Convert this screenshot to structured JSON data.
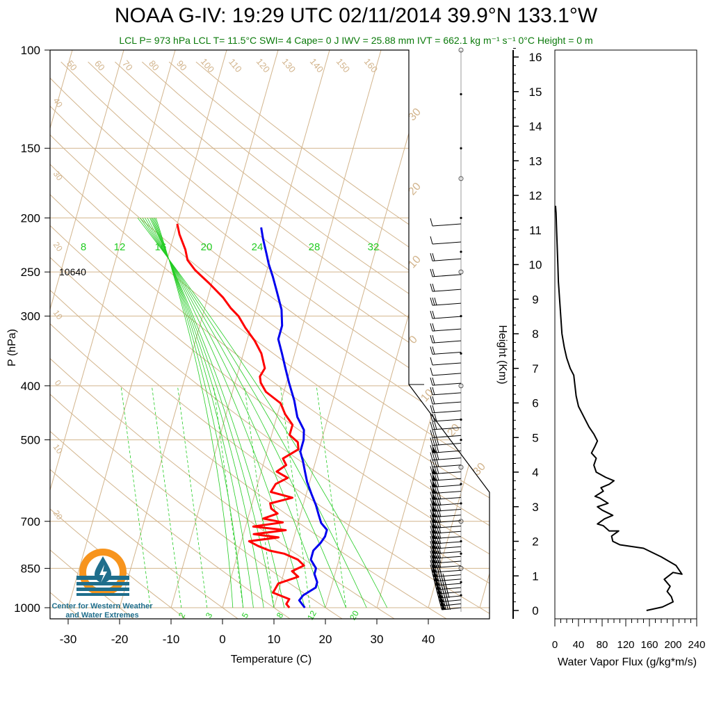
{
  "title": "NOAA G-IV: 19:29 UTC 02/11/2014  39.9°N 133.1°W",
  "subtitle": "LCL P= 973 hPa  LCL T= 11.5°C  SWI= 4  Cape= 0 J  IWV = 25.88 mm  IVT = 662.1 kg m⁻¹ s⁻¹  0°C Height = 0 m",
  "logo": {
    "line1": "Center for Western Weather",
    "line2": "and Water Extremes"
  },
  "colors": {
    "temperature": "#ff0000",
    "dewpoint": "#0000ee",
    "isotherm": "#d2b48c",
    "mixing_ratio": "#22cc22",
    "subtitle": "#0a7a0a"
  },
  "chart_data": [
    {
      "type": "line",
      "subtype": "skew-T log-P sounding",
      "title": "",
      "xlabel": "Temperature (C)",
      "ylabel": "P (hPa)",
      "x_ticks": [
        -30,
        -20,
        -10,
        0,
        10,
        20,
        30,
        40
      ],
      "y_ticks": [
        100,
        150,
        200,
        250,
        300,
        400,
        500,
        700,
        850,
        1000
      ],
      "y_scale": "log",
      "ylim": [
        1000,
        100
      ],
      "annotation": "10640",
      "series": [
        {
          "color": "red",
          "points": [
            [
              13,
              1000
            ],
            [
              12.2,
              985
            ],
            [
              12.5,
              965
            ],
            [
              9,
              940
            ],
            [
              9.5,
              905
            ],
            [
              13,
              880
            ],
            [
              11.5,
              860
            ],
            [
              13.5,
              840
            ],
            [
              12,
              820
            ],
            [
              9,
              800
            ],
            [
              6,
              790
            ],
            [
              3.5,
              775
            ],
            [
              1.5,
              760
            ],
            [
              7,
              748
            ],
            [
              2,
              738
            ],
            [
              8,
              726
            ],
            [
              1.5,
              715
            ],
            [
              7,
              703
            ],
            [
              3,
              692
            ],
            [
              5.5,
              678
            ],
            [
              4,
              664
            ],
            [
              3.5,
              650
            ],
            [
              7.5,
              635
            ],
            [
              3,
              620
            ],
            [
              3.5,
              600
            ],
            [
              5.5,
              585
            ],
            [
              3,
              570
            ],
            [
              4.5,
              555
            ],
            [
              3.5,
              540
            ],
            [
              6,
              520
            ],
            [
              5.5,
              505
            ],
            [
              3.5,
              490
            ],
            [
              3.5,
              470
            ],
            [
              1.5,
              450
            ],
            [
              0,
              430
            ],
            [
              -3.5,
              410
            ],
            [
              -5,
              395
            ],
            [
              -5.5,
              385
            ],
            [
              -5,
              372
            ],
            [
              -6.5,
              350
            ],
            [
              -8.5,
              332
            ],
            [
              -11,
              315
            ],
            [
              -13,
              300
            ],
            [
              -15,
              290
            ],
            [
              -17,
              278
            ],
            [
              -20.5,
              262
            ],
            [
              -24,
              248
            ],
            [
              -26,
              238
            ],
            [
              -27,
              228
            ],
            [
              -29,
              214
            ],
            [
              -30,
              205
            ]
          ]
        },
        {
          "color": "blue",
          "points": [
            [
              16,
              1000
            ],
            [
              14.5,
              970
            ],
            [
              15,
              950
            ],
            [
              17,
              920
            ],
            [
              17,
              900
            ],
            [
              16,
              870
            ],
            [
              16,
              850
            ],
            [
              14.5,
              820
            ],
            [
              14.5,
              790
            ],
            [
              15.5,
              765
            ],
            [
              16,
              745
            ],
            [
              16,
              725
            ],
            [
              14.5,
              705
            ],
            [
              13.5,
              680
            ],
            [
              12.5,
              655
            ],
            [
              11,
              625
            ],
            [
              9.5,
              595
            ],
            [
              8.5,
              570
            ],
            [
              7.5,
              545
            ],
            [
              6.5,
              525
            ],
            [
              6.5,
              500
            ],
            [
              6,
              480
            ],
            [
              4,
              455
            ],
            [
              2.5,
              425
            ],
            [
              0.5,
              395
            ],
            [
              -1,
              372
            ],
            [
              -2.5,
              350
            ],
            [
              -4,
              330
            ],
            [
              -4,
              312
            ],
            [
              -5,
              292
            ],
            [
              -7,
              270
            ],
            [
              -8.5,
              255
            ],
            [
              -10,
              242
            ],
            [
              -11,
              232
            ],
            [
              -12.5,
              218
            ],
            [
              -13.5,
              208
            ]
          ]
        }
      ],
      "mixing_ratio_labels_upper": [
        "8",
        "12",
        "16",
        "20",
        "24",
        "28",
        "32"
      ],
      "mixing_ratio_labels_lower": [
        "2",
        "3",
        "5",
        "8",
        "12",
        "20"
      ],
      "top_labels": [
        "50",
        "60",
        "70",
        "80",
        "90",
        "100",
        "110",
        "120",
        "130",
        "140",
        "150",
        "160"
      ],
      "right_labels": [
        "30",
        "20",
        "10",
        "0",
        "10",
        "20",
        "30"
      ],
      "left_labels": [
        "40",
        "30",
        "20",
        "10",
        "0",
        "10",
        "20"
      ],
      "wind_speeds": [
        10,
        12,
        15,
        18,
        20,
        22,
        20,
        18,
        15,
        14,
        12,
        12,
        14,
        15,
        18,
        20,
        22,
        25,
        25,
        28,
        30,
        28,
        28,
        30,
        32,
        32,
        30,
        35,
        35,
        40,
        40,
        40,
        40,
        38,
        38,
        38,
        35,
        35,
        35,
        35,
        38,
        40,
        40,
        42,
        45,
        45,
        45,
        42,
        40,
        40,
        40
      ]
    },
    {
      "type": "line",
      "title": "",
      "xlabel": "Water Vapor Flux (g/kg*m/s)",
      "ylabel": "Height (Km)",
      "xlim": [
        0,
        240
      ],
      "ylim": [
        0,
        16
      ],
      "x_ticks": [
        0,
        40,
        80,
        120,
        160,
        200,
        240
      ],
      "y_ticks": [
        0,
        1,
        2,
        3,
        4,
        5,
        6,
        7,
        8,
        9,
        10,
        11,
        12,
        13,
        14,
        15,
        16
      ],
      "series": [
        {
          "color": "black",
          "points": [
            [
              155,
              0
            ],
            [
              182,
              0.1
            ],
            [
              200,
              0.25
            ],
            [
              197,
              0.4
            ],
            [
              190,
              0.55
            ],
            [
              195,
              0.7
            ],
            [
              185,
              0.9
            ],
            [
              200,
              1.1
            ],
            [
              215,
              1.05
            ],
            [
              205,
              1.3
            ],
            [
              180,
              1.55
            ],
            [
              150,
              1.8
            ],
            [
              110,
              1.9
            ],
            [
              98,
              2.0
            ],
            [
              96,
              2.15
            ],
            [
              108,
              2.3
            ],
            [
              92,
              2.3
            ],
            [
              82,
              2.45
            ],
            [
              72,
              2.5
            ],
            [
              84,
              2.65
            ],
            [
              98,
              2.75
            ],
            [
              80,
              2.9
            ],
            [
              72,
              3.0
            ],
            [
              90,
              3.1
            ],
            [
              76,
              3.25
            ],
            [
              68,
              3.3
            ],
            [
              82,
              3.45
            ],
            [
              78,
              3.55
            ],
            [
              92,
              3.65
            ],
            [
              100,
              3.75
            ],
            [
              86,
              3.85
            ],
            [
              70,
              4.0
            ],
            [
              66,
              4.2
            ],
            [
              70,
              4.4
            ],
            [
              62,
              4.55
            ],
            [
              68,
              4.75
            ],
            [
              72,
              4.9
            ],
            [
              66,
              5.1
            ],
            [
              58,
              5.3
            ],
            [
              52,
              5.5
            ],
            [
              46,
              5.7
            ],
            [
              40,
              5.9
            ],
            [
              36,
              6.2
            ],
            [
              34,
              6.5
            ],
            [
              32,
              6.8
            ],
            [
              26,
              7.0
            ],
            [
              20,
              7.3
            ],
            [
              16,
              7.6
            ],
            [
              12,
              8.0
            ],
            [
              10,
              8.5
            ],
            [
              8,
              9.0
            ],
            [
              6,
              9.5
            ],
            [
              5,
              10.0
            ],
            [
              4,
              10.5
            ],
            [
              3,
              11.0
            ],
            [
              2,
              11.5
            ],
            [
              1,
              11.7
            ]
          ]
        }
      ]
    }
  ]
}
